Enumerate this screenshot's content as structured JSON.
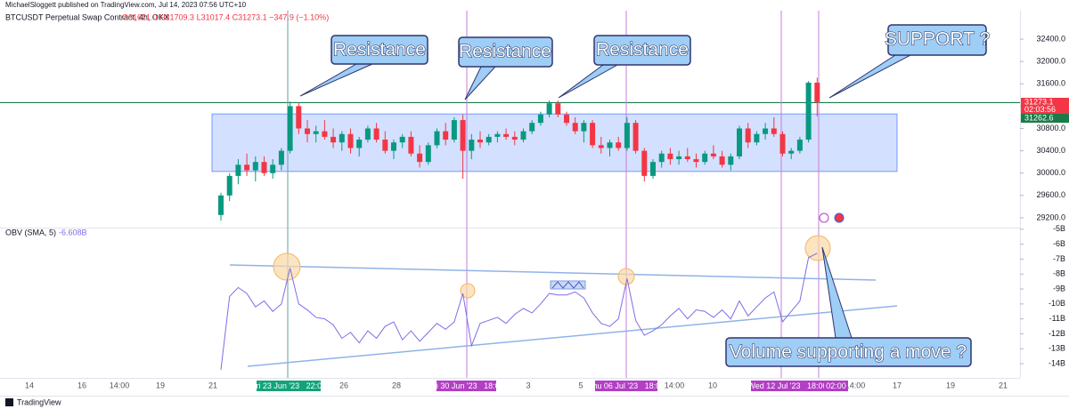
{
  "header": {
    "publisher": "MichaelSloggett published on TradingView.com, Jul 14, 2023 07:56 UTC+10",
    "symbol": "BTCUSDT Perpetual Swap Contract, 4h, OKX",
    "ohlc": "O31621.0 H31709.3 L31017.4 C31273.1 −347.9 (−1.10%)"
  },
  "chart_data": [
    {
      "type": "candlestick",
      "up_color": "#089981",
      "down_color": "#f23645",
      "ylim": [
        29040,
        32910
      ],
      "yticks": [
        {
          "value": 29200,
          "label": "29200.0"
        },
        {
          "value": 29600,
          "label": "29600.0"
        },
        {
          "value": 30000,
          "label": "30000.0"
        },
        {
          "value": 30400,
          "label": "30400.0"
        },
        {
          "value": 30800,
          "label": "30800.0"
        },
        {
          "value": 31200,
          "label": "31200.0"
        },
        {
          "value": 31600,
          "label": "31600.0"
        },
        {
          "value": 32000,
          "label": "32000.0"
        },
        {
          "value": 32400,
          "label": "32400.0"
        }
      ],
      "hline": 31262.6,
      "hline_color": "#1b7a4a",
      "zone": [
        30030,
        31060
      ],
      "countdown": "02:03:56",
      "candles": [
        [
          29250,
          29650,
          29150,
          29600
        ],
        [
          29600,
          30000,
          29500,
          29950
        ],
        [
          29950,
          30250,
          29800,
          30150
        ],
        [
          30150,
          30350,
          29950,
          30050
        ],
        [
          30050,
          30300,
          29850,
          30200
        ],
        [
          30200,
          30300,
          29950,
          30000
        ],
        [
          30000,
          30250,
          29900,
          30150
        ],
        [
          30150,
          30450,
          30050,
          30400
        ],
        [
          30400,
          31280,
          30350,
          31200
        ],
        [
          31200,
          31250,
          30700,
          30800
        ],
        [
          30800,
          30950,
          30550,
          30700
        ],
        [
          30700,
          30850,
          30550,
          30750
        ],
        [
          30750,
          30950,
          30600,
          30650
        ],
        [
          30650,
          30800,
          30450,
          30550
        ],
        [
          30550,
          30750,
          30400,
          30700
        ],
        [
          30700,
          30800,
          30350,
          30450
        ],
        [
          30450,
          30650,
          30300,
          30600
        ],
        [
          30600,
          30850,
          30550,
          30800
        ],
        [
          30800,
          30900,
          30550,
          30600
        ],
        [
          30600,
          30750,
          30350,
          30400
        ],
        [
          30400,
          30600,
          30250,
          30550
        ],
        [
          30550,
          30700,
          30450,
          30650
        ],
        [
          30650,
          30750,
          30300,
          30350
        ],
        [
          30350,
          30500,
          30100,
          30200
        ],
        [
          30200,
          30550,
          30150,
          30500
        ],
        [
          30500,
          30800,
          30450,
          30750
        ],
        [
          30750,
          30900,
          30500,
          30600
        ],
        [
          30600,
          31000,
          30550,
          30950
        ],
        [
          30950,
          31050,
          29900,
          30400
        ],
        [
          30400,
          30700,
          30250,
          30600
        ],
        [
          30600,
          30750,
          30450,
          30550
        ],
        [
          30550,
          30700,
          30500,
          30650
        ],
        [
          30650,
          30750,
          30550,
          30700
        ],
        [
          30700,
          30800,
          30600,
          30650
        ],
        [
          30650,
          30750,
          30500,
          30600
        ],
        [
          30600,
          30800,
          30550,
          30750
        ],
        [
          30750,
          30950,
          30700,
          30900
        ],
        [
          30900,
          31100,
          30850,
          31050
        ],
        [
          31050,
          31300,
          31000,
          31250
        ],
        [
          31250,
          31300,
          31000,
          31050
        ],
        [
          31050,
          31100,
          30850,
          30900
        ],
        [
          30900,
          31000,
          30700,
          30750
        ],
        [
          30750,
          30950,
          30550,
          30900
        ],
        [
          30900,
          30950,
          30450,
          30500
        ],
        [
          30500,
          30650,
          30350,
          30450
        ],
        [
          30450,
          30600,
          30300,
          30550
        ],
        [
          30550,
          30650,
          30400,
          30450
        ],
        [
          30450,
          31000,
          30400,
          30900
        ],
        [
          30900,
          30950,
          30350,
          30400
        ],
        [
          30400,
          30450,
          29850,
          29950
        ],
        [
          29950,
          30250,
          29900,
          30200
        ],
        [
          30200,
          30400,
          30100,
          30350
        ],
        [
          30350,
          30450,
          30150,
          30250
        ],
        [
          30250,
          30400,
          30150,
          30300
        ],
        [
          30300,
          30450,
          30200,
          30250
        ],
        [
          30250,
          30350,
          30100,
          30200
        ],
        [
          30200,
          30400,
          30150,
          30350
        ],
        [
          30350,
          30500,
          30250,
          30300
        ],
        [
          30300,
          30400,
          30100,
          30150
        ],
        [
          30150,
          30350,
          30050,
          30300
        ],
        [
          30300,
          30850,
          30250,
          30800
        ],
        [
          30800,
          30900,
          30450,
          30550
        ],
        [
          30550,
          30750,
          30500,
          30700
        ],
        [
          30700,
          30900,
          30600,
          30800
        ],
        [
          30800,
          31000,
          30650,
          30700
        ],
        [
          30700,
          30750,
          30300,
          30350
        ],
        [
          30350,
          30450,
          30250,
          30400
        ],
        [
          30400,
          30650,
          30350,
          30600
        ],
        [
          30600,
          31650,
          30550,
          31620
        ],
        [
          31621.0,
          31709.3,
          31017.4,
          31273.1
        ]
      ]
    },
    {
      "type": "line",
      "legend": "OBV (SMA, 5)",
      "legend_value": "-6.608B",
      "color": "#7b6ee8",
      "ylim": [
        -14.95,
        -4.95
      ],
      "yticks": [
        {
          "value": -5,
          "label": "-5B"
        },
        {
          "value": -6,
          "label": "-6B"
        },
        {
          "value": -7,
          "label": "-7B"
        },
        {
          "value": -8,
          "label": "-8B"
        },
        {
          "value": -9,
          "label": "-9B"
        },
        {
          "value": -10,
          "label": "-10B"
        },
        {
          "value": -11,
          "label": "-11B"
        },
        {
          "value": -12,
          "label": "-12B"
        },
        {
          "value": -13,
          "label": "-13B"
        },
        {
          "value": -14,
          "label": "-14B"
        }
      ],
      "values": [
        -14.4,
        -9.5,
        -8.9,
        -9.3,
        -10.2,
        -9.8,
        -10.5,
        -10.0,
        -7.6,
        -10.0,
        -10.4,
        -10.9,
        -11.0,
        -11.4,
        -12.3,
        -11.9,
        -12.6,
        -11.8,
        -12.3,
        -11.5,
        -11.2,
        -12.4,
        -11.8,
        -12.5,
        -11.9,
        -11.3,
        -11.7,
        -11.2,
        -9.3,
        -12.8,
        -11.3,
        -11.1,
        -10.9,
        -11.3,
        -10.7,
        -10.3,
        -10.6,
        -10.0,
        -9.3,
        -9.4,
        -9.4,
        -9.2,
        -9.6,
        -10.6,
        -11.3,
        -11.5,
        -11.0,
        -8.3,
        -11.1,
        -12.1,
        -11.8,
        -11.4,
        -10.8,
        -10.3,
        -11.0,
        -10.4,
        -10.5,
        -10.9,
        -10.4,
        -11.0,
        -9.8,
        -10.8,
        -10.2,
        -9.6,
        -9.2,
        -11.2,
        -10.5,
        -9.8,
        -6.9,
        -6.608
      ]
    }
  ],
  "time_axis": {
    "labels": [
      "14",
      "16",
      "14:00",
      "19",
      "21",
      "26",
      "28",
      "3",
      "5",
      "14:00",
      "10",
      "14:00",
      "17",
      "19",
      "21"
    ],
    "markers": [
      {
        "label": "Fri 23 Jun '23   22:00",
        "color": "#13a37a"
      },
      {
        "label": "Fri 30 Jun '23   18:00",
        "color": "#b23fc4"
      },
      {
        "label": "Thu 06 Jul '23   18:00",
        "color": "#b23fc4"
      },
      {
        "label": "Wed 12 Jul '23   18:00",
        "color": "#b23fc4"
      },
      {
        "label": "02:00",
        "color": "#b23fc4"
      }
    ]
  },
  "annotations": [
    "Resistance",
    "Resistance",
    "Resistance",
    "SUPPORT ?",
    "Volume supporting a move ?"
  ],
  "footer": "TradingView"
}
